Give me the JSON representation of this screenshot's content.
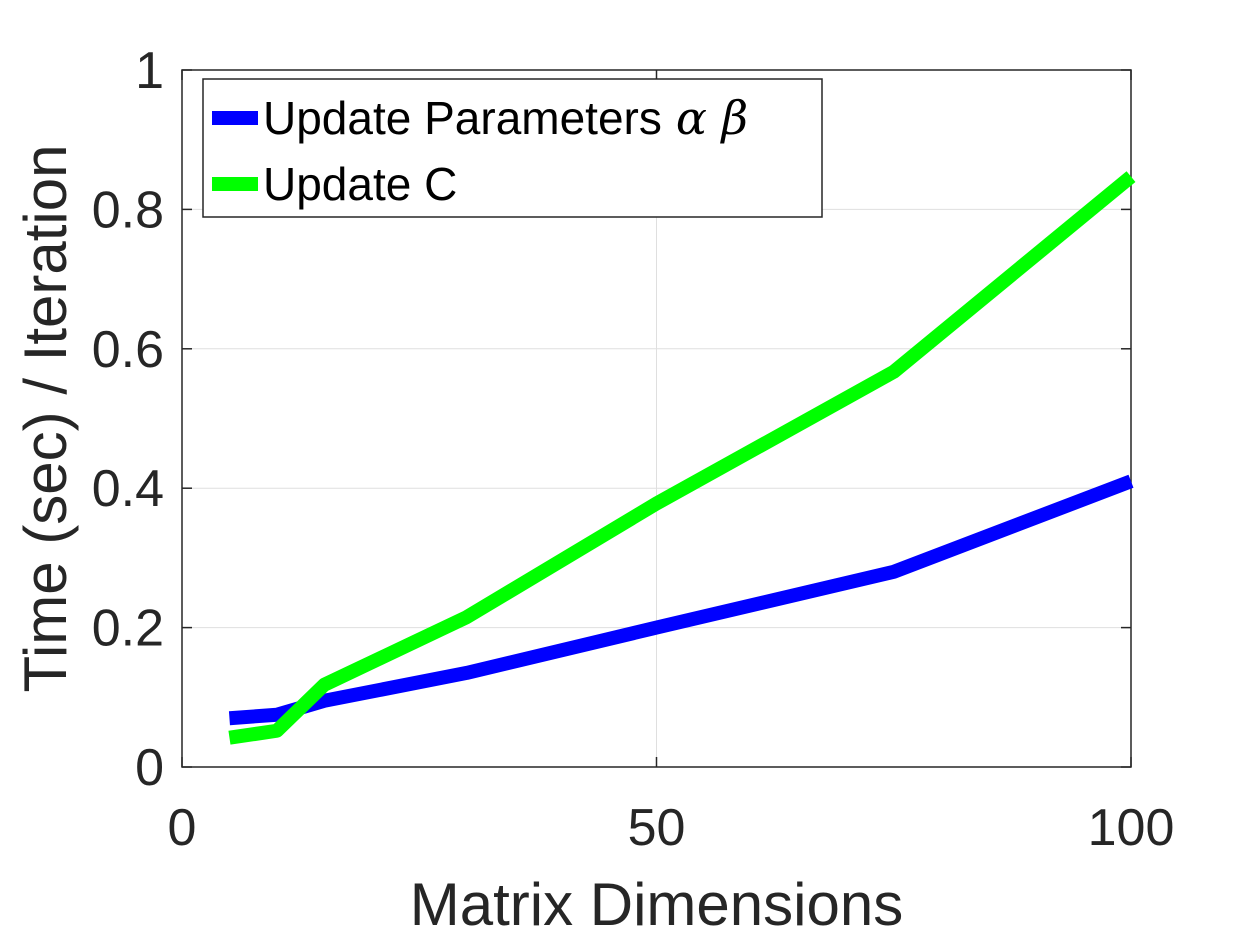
{
  "chart_data": {
    "type": "line",
    "xlabel": "Matrix Dimensions",
    "ylabel": "Time (sec) / Iteration",
    "xlim": [
      0,
      100
    ],
    "ylim": [
      0,
      1
    ],
    "xticks": [
      0,
      50,
      100
    ],
    "yticks": [
      0,
      0.2,
      0.4,
      0.6,
      0.8,
      1
    ],
    "xtick_labels": [
      "0",
      "50",
      "100"
    ],
    "ytick_labels": [
      "0",
      "0.2",
      "0.4",
      "0.6",
      "0.8",
      "1"
    ],
    "grid": true,
    "box": true,
    "legend_position": "top-left",
    "series": [
      {
        "name": "Update Parameters",
        "name_suffix": "α β",
        "color": "#0000ff",
        "x": [
          5,
          10,
          15,
          30,
          50,
          75,
          100
        ],
        "y": [
          0.07,
          0.075,
          0.095,
          0.135,
          0.2,
          0.28,
          0.41
        ]
      },
      {
        "name": "Update C",
        "color": "#00ff00",
        "x": [
          5,
          10,
          15,
          30,
          50,
          75,
          100
        ],
        "y": [
          0.042,
          0.052,
          0.118,
          0.215,
          0.378,
          0.567,
          0.847
        ]
      }
    ]
  }
}
